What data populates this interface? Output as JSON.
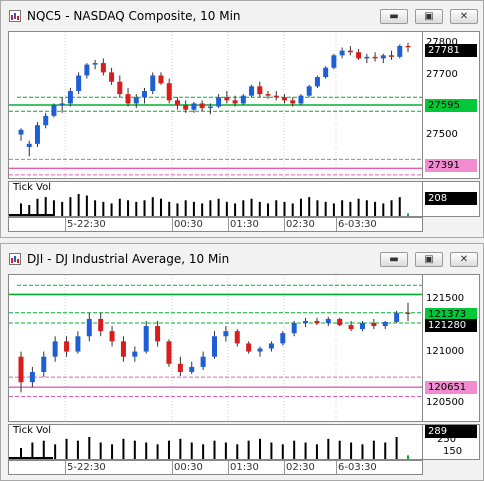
{
  "windows": [
    {
      "title": "NQC5 - NASDAQ Composite, 10 Min",
      "price_scale": [
        "27800",
        "27700",
        "27600",
        "27500",
        "27400"
      ],
      "scale_tags": {
        "last": "27781",
        "green": "27595",
        "pink": "27391"
      },
      "volume": {
        "label": "Tick Vol",
        "value": "208"
      },
      "time_labels": [
        "5-22:30",
        "00:30",
        "01:30",
        "02:30",
        "6-03:30"
      ]
    },
    {
      "title": "DJI - DJ Industrial Average, 10 Min",
      "price_scale": [
        "121500",
        "121000",
        "120500"
      ],
      "scale_tags": {
        "last": "121373",
        "mid": "121280",
        "pink": "120651"
      },
      "volume": {
        "label": "Tick Vol",
        "value": "289",
        "scale_mid": "250",
        "scale_low": "150"
      },
      "time_labels": [
        "5-22:30",
        "00:30",
        "01:30",
        "02:30",
        "6-03:30"
      ]
    }
  ],
  "colors": {
    "up": "#1f5fd6",
    "down": "#d91c1c",
    "green": "#00b030",
    "pink": "#e060b0"
  },
  "chart_data": [
    {
      "type": "candlestick",
      "title": "NQC5 - NASDAQ Composite, 10 Min",
      "ylim": [
        27360,
        27830
      ],
      "candles": [
        [
          27500,
          27520,
          27480,
          27515
        ],
        [
          27460,
          27480,
          27430,
          27470
        ],
        [
          27470,
          27540,
          27460,
          27530
        ],
        [
          27530,
          27570,
          27520,
          27560
        ],
        [
          27560,
          27600,
          27555,
          27595
        ],
        [
          27595,
          27620,
          27570,
          27600
        ],
        [
          27600,
          27650,
          27590,
          27640
        ],
        [
          27640,
          27700,
          27630,
          27690
        ],
        [
          27690,
          27730,
          27680,
          27725
        ],
        [
          27725,
          27740,
          27710,
          27730
        ],
        [
          27730,
          27745,
          27690,
          27700
        ],
        [
          27700,
          27715,
          27660,
          27670
        ],
        [
          27670,
          27690,
          27620,
          27630
        ],
        [
          27630,
          27650,
          27590,
          27600
        ],
        [
          27600,
          27630,
          27585,
          27620
        ],
        [
          27620,
          27650,
          27600,
          27640
        ],
        [
          27640,
          27700,
          27630,
          27690
        ],
        [
          27690,
          27700,
          27660,
          27665
        ],
        [
          27665,
          27680,
          27600,
          27610
        ],
        [
          27610,
          27620,
          27580,
          27595
        ],
        [
          27595,
          27610,
          27570,
          27580
        ],
        [
          27580,
          27605,
          27570,
          27600
        ],
        [
          27600,
          27610,
          27575,
          27585
        ],
        [
          27585,
          27600,
          27565,
          27590
        ],
        [
          27590,
          27630,
          27585,
          27620
        ],
        [
          27620,
          27640,
          27600,
          27610
        ],
        [
          27610,
          27625,
          27590,
          27600
        ],
        [
          27600,
          27630,
          27595,
          27625
        ],
        [
          27625,
          27660,
          27620,
          27655
        ],
        [
          27655,
          27670,
          27620,
          27630
        ],
        [
          27630,
          27640,
          27615,
          27625
        ],
        [
          27625,
          27640,
          27610,
          27620
        ],
        [
          27620,
          27630,
          27600,
          27610
        ],
        [
          27610,
          27620,
          27590,
          27600
        ],
        [
          27600,
          27630,
          27595,
          27625
        ],
        [
          27625,
          27660,
          27620,
          27655
        ],
        [
          27655,
          27690,
          27650,
          27685
        ],
        [
          27685,
          27720,
          27680,
          27715
        ],
        [
          27715,
          27760,
          27710,
          27755
        ],
        [
          27755,
          27780,
          27745,
          27770
        ],
        [
          27770,
          27785,
          27755,
          27765
        ],
        [
          27765,
          27775,
          27740,
          27745
        ],
        [
          27745,
          27760,
          27730,
          27750
        ],
        [
          27750,
          27765,
          27735,
          27745
        ],
        [
          27745,
          27760,
          27730,
          27755
        ],
        [
          27755,
          27770,
          27740,
          27750
        ],
        [
          27750,
          27790,
          27745,
          27785
        ],
        [
          27785,
          27795,
          27765,
          27781
        ]
      ],
      "levels": {
        "green": [
          27620,
          27595,
          27575
        ],
        "pink": [
          27420,
          27391,
          27370
        ]
      },
      "volume": [
        40,
        35,
        55,
        60,
        50,
        45,
        60,
        70,
        65,
        50,
        45,
        40,
        55,
        50,
        45,
        50,
        60,
        55,
        45,
        40,
        50,
        45,
        40,
        50,
        55,
        45,
        40,
        50,
        55,
        45,
        40,
        50,
        45,
        40,
        55,
        60,
        50,
        45,
        40,
        50,
        45,
        55,
        50,
        45,
        40,
        50,
        60,
        8
      ]
    },
    {
      "type": "candlestick",
      "title": "DJI - DJ Industrial Average, 10 Min",
      "ylim": [
        120320,
        121750
      ],
      "candles": [
        [
          120950,
          121000,
          120600,
          120700
        ],
        [
          120700,
          120850,
          120650,
          120800
        ],
        [
          120800,
          121000,
          120750,
          120950
        ],
        [
          120950,
          121150,
          120900,
          121100
        ],
        [
          121100,
          121150,
          120950,
          121000
        ],
        [
          121000,
          121200,
          120980,
          121150
        ],
        [
          121150,
          121380,
          121100,
          121320
        ],
        [
          121320,
          121380,
          121150,
          121200
        ],
        [
          121200,
          121250,
          121050,
          121100
        ],
        [
          121100,
          121150,
          120900,
          120950
        ],
        [
          120950,
          121050,
          120900,
          121000
        ],
        [
          121000,
          121300,
          120980,
          121250
        ],
        [
          121250,
          121300,
          121050,
          121100
        ],
        [
          121100,
          121120,
          120850,
          120880
        ],
        [
          120880,
          120950,
          120760,
          120800
        ],
        [
          120800,
          120900,
          120780,
          120850
        ],
        [
          120850,
          121000,
          120820,
          120950
        ],
        [
          120950,
          121200,
          120930,
          121150
        ],
        [
          121150,
          121250,
          121100,
          121200
        ],
        [
          121200,
          121220,
          121050,
          121080
        ],
        [
          121080,
          121100,
          120980,
          121000
        ],
        [
          121000,
          121050,
          120950,
          121030
        ],
        [
          121030,
          121100,
          121000,
          121080
        ],
        [
          121080,
          121200,
          121060,
          121180
        ],
        [
          121180,
          121300,
          121150,
          121280
        ],
        [
          121280,
          121330,
          121240,
          121300
        ],
        [
          121300,
          121330,
          121260,
          121280
        ],
        [
          121280,
          121340,
          121250,
          121320
        ],
        [
          121320,
          121330,
          121250,
          121260
        ],
        [
          121260,
          121300,
          121200,
          121220
        ],
        [
          121220,
          121300,
          121200,
          121280
        ],
        [
          121280,
          121320,
          121220,
          121250
        ],
        [
          121250,
          121300,
          121220,
          121290
        ],
        [
          121290,
          121400,
          121280,
          121380
        ],
        [
          121380,
          121480,
          121300,
          121373
        ]
      ],
      "levels": {
        "green": [
          121650,
          121560,
          121380,
          121280
        ],
        "pink": [
          120750,
          120651,
          120560
        ]
      },
      "volume": [
        30,
        45,
        50,
        40,
        55,
        50,
        60,
        45,
        40,
        55,
        50,
        45,
        40,
        50,
        55,
        45,
        40,
        50,
        45,
        40,
        50,
        55,
        45,
        40,
        50,
        45,
        40,
        55,
        50,
        45,
        40,
        50,
        45,
        60,
        10
      ]
    }
  ]
}
